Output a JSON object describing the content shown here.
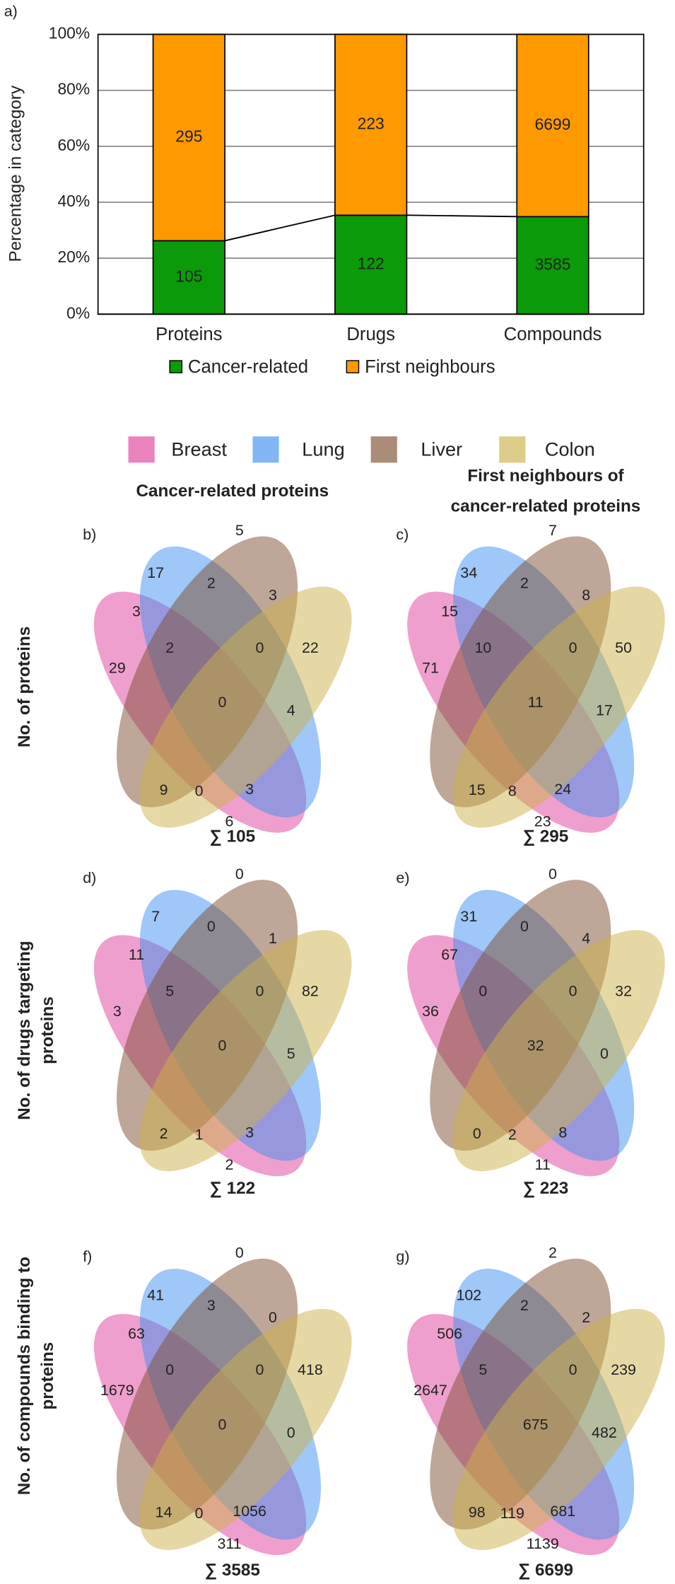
{
  "chart_data": [
    {
      "type": "bar",
      "panel_label": "a)",
      "stacking": "percent",
      "ylabel": "Percentage in category",
      "categories": [
        "Proteins",
        "Drugs",
        "Compounds"
      ],
      "series": [
        {
          "name": "Cancer-related",
          "color": "#0a9a0a",
          "values": [
            105,
            122,
            3585
          ]
        },
        {
          "name": "First neighbours",
          "color": "#ff9900",
          "values": [
            295,
            223,
            6699
          ]
        }
      ],
      "ylim": [
        0,
        100
      ],
      "yticks": [
        {
          "value": 0,
          "label": "0%"
        },
        {
          "value": 20,
          "label": "20%"
        },
        {
          "value": 40,
          "label": "40%"
        },
        {
          "value": 60,
          "label": "60%"
        },
        {
          "value": 80,
          "label": "80%"
        },
        {
          "value": 100,
          "label": "100%"
        }
      ],
      "grid": true,
      "connectors": true
    },
    {
      "type": "venn",
      "panel_label": "b)",
      "values": [
        17,
        5,
        2,
        3,
        3,
        22,
        29,
        2,
        0,
        0,
        4,
        9,
        0,
        3,
        6
      ],
      "total_label": "∑ 105"
    },
    {
      "type": "venn",
      "panel_label": "c)",
      "values": [
        34,
        7,
        2,
        8,
        15,
        50,
        71,
        10,
        0,
        11,
        17,
        15,
        8,
        24,
        23
      ],
      "total_label": "∑ 295"
    },
    {
      "type": "venn",
      "panel_label": "d)",
      "values": [
        7,
        0,
        0,
        1,
        11,
        82,
        3,
        5,
        0,
        0,
        5,
        2,
        1,
        3,
        2
      ],
      "total_label": "∑ 122"
    },
    {
      "type": "venn",
      "panel_label": "e)",
      "values": [
        31,
        0,
        0,
        4,
        67,
        32,
        36,
        0,
        0,
        32,
        0,
        0,
        2,
        8,
        11
      ],
      "total_label": "∑ 223"
    },
    {
      "type": "venn",
      "panel_label": "f)",
      "values": [
        41,
        0,
        3,
        0,
        63,
        418,
        1679,
        0,
        0,
        0,
        0,
        14,
        0,
        1056,
        311
      ],
      "total_label": "∑ 3585"
    },
    {
      "type": "venn",
      "panel_label": "g)",
      "values": [
        102,
        2,
        2,
        2,
        506,
        239,
        2647,
        5,
        0,
        675,
        482,
        98,
        119,
        681,
        1139
      ],
      "total_label": "∑ 6699"
    }
  ],
  "venn_legend": {
    "names": [
      "Breast",
      "Lung",
      "Liver",
      "Colon"
    ],
    "colors": [
      "#e0409c",
      "#3f8ff0",
      "#7e4e32",
      "#cdb24a"
    ]
  },
  "column_headers": [
    [
      "Cancer-related proteins"
    ],
    [
      "First neighbours of",
      "cancer-related proteins"
    ]
  ],
  "row_labels": [
    [
      "No. of proteins"
    ],
    [
      "No. of drugs targeting",
      "proteins"
    ],
    [
      "No. of compounds binding to",
      "proteins"
    ]
  ]
}
